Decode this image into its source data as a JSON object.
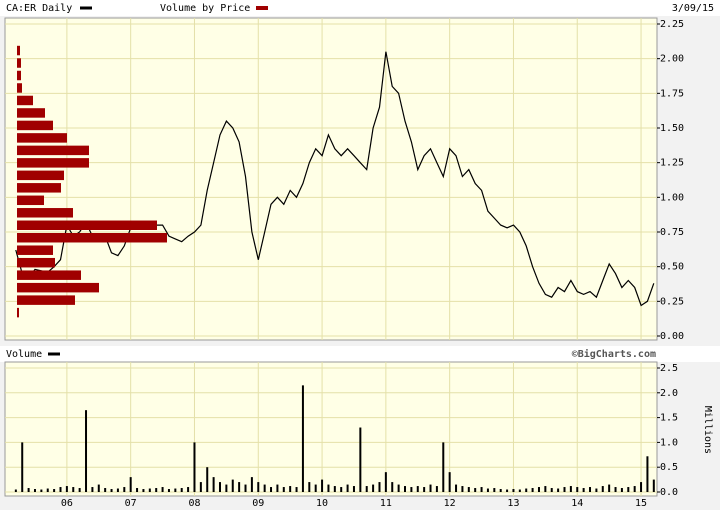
{
  "chart_data": [
    {
      "type": "line",
      "date": "3/09/15",
      "x": [
        2005.2,
        2005.3,
        2005.4,
        2005.5,
        2005.6,
        2005.7,
        2005.8,
        2005.9,
        2006.0,
        2006.1,
        2006.2,
        2006.3,
        2006.4,
        2006.5,
        2006.6,
        2006.7,
        2006.8,
        2006.9,
        2007.0,
        2007.1,
        2007.2,
        2007.3,
        2007.4,
        2007.5,
        2007.6,
        2007.7,
        2007.8,
        2007.9,
        2008.0,
        2008.1,
        2008.2,
        2008.3,
        2008.4,
        2008.5,
        2008.6,
        2008.7,
        2008.8,
        2008.9,
        2009.0,
        2009.1,
        2009.2,
        2009.3,
        2009.4,
        2009.5,
        2009.6,
        2009.7,
        2009.8,
        2009.9,
        2010.0,
        2010.1,
        2010.2,
        2010.3,
        2010.4,
        2010.5,
        2010.6,
        2010.7,
        2010.8,
        2010.9,
        2011.0,
        2011.1,
        2011.2,
        2011.3,
        2011.4,
        2011.5,
        2011.6,
        2011.7,
        2011.8,
        2011.9,
        2012.0,
        2012.1,
        2012.2,
        2012.3,
        2012.4,
        2012.5,
        2012.6,
        2012.7,
        2012.8,
        2012.9,
        2013.0,
        2013.1,
        2013.2,
        2013.3,
        2013.4,
        2013.5,
        2013.6,
        2013.7,
        2013.8,
        2013.9,
        2014.0,
        2014.1,
        2014.2,
        2014.3,
        2014.4,
        2014.5,
        2014.6,
        2014.7,
        2014.8,
        2014.9,
        2015.0,
        2015.1,
        2015.2
      ],
      "series": [
        {
          "name": "CA:ER Daily",
          "color": "#000000",
          "values": [
            0.62,
            0.45,
            0.42,
            0.48,
            0.47,
            0.46,
            0.5,
            0.55,
            0.8,
            0.72,
            0.75,
            0.82,
            0.72,
            0.7,
            0.72,
            0.6,
            0.58,
            0.65,
            0.78,
            0.82,
            0.8,
            0.78,
            0.8,
            0.8,
            0.72,
            0.7,
            0.68,
            0.72,
            0.75,
            0.8,
            1.05,
            1.25,
            1.45,
            1.55,
            1.5,
            1.4,
            1.15,
            0.75,
            0.55,
            0.75,
            0.95,
            1.0,
            0.95,
            1.05,
            1.0,
            1.1,
            1.25,
            1.35,
            1.3,
            1.45,
            1.35,
            1.3,
            1.35,
            1.3,
            1.25,
            1.2,
            1.5,
            1.65,
            2.05,
            1.8,
            1.75,
            1.55,
            1.4,
            1.2,
            1.3,
            1.35,
            1.25,
            1.15,
            1.35,
            1.3,
            1.15,
            1.2,
            1.1,
            1.05,
            0.9,
            0.85,
            0.8,
            0.78,
            0.8,
            0.75,
            0.65,
            0.5,
            0.38,
            0.3,
            0.28,
            0.35,
            0.32,
            0.4,
            0.32,
            0.3,
            0.32,
            0.28,
            0.4,
            0.52,
            0.45,
            0.35,
            0.4,
            0.35,
            0.22,
            0.25,
            0.38
          ]
        }
      ],
      "volume_by_price": {
        "name": "Volume by Price",
        "color": "#a00000",
        "bins": [
          0.12,
          0.21,
          0.3,
          0.39,
          0.48,
          0.57,
          0.66,
          0.75,
          0.84,
          0.93,
          1.02,
          1.11,
          1.2,
          1.29,
          1.38,
          1.47,
          1.56,
          1.65,
          1.74,
          1.83,
          1.92,
          2.01,
          2.1
        ],
        "values": [
          2,
          58,
          82,
          64,
          38,
          36,
          150,
          140,
          56,
          27,
          44,
          47,
          72,
          72,
          50,
          36,
          28,
          16,
          5,
          4,
          4,
          3
        ]
      },
      "xlim": [
        2005.03,
        2015.25
      ],
      "ylim": [
        0,
        2.25
      ],
      "xticks": [
        {
          "value": 2006,
          "label": "06"
        },
        {
          "value": 2007,
          "label": "07"
        },
        {
          "value": 2008,
          "label": "08"
        },
        {
          "value": 2009,
          "label": "09"
        },
        {
          "value": 2010,
          "label": "10"
        },
        {
          "value": 2011,
          "label": "11"
        },
        {
          "value": 2012,
          "label": "12"
        },
        {
          "value": 2013,
          "label": "13"
        },
        {
          "value": 2014,
          "label": "14"
        },
        {
          "value": 2015,
          "label": "15"
        }
      ],
      "yticks": [
        {
          "value": 0,
          "label": "0.00"
        },
        {
          "value": 0.25,
          "label": "0.25"
        },
        {
          "value": 0.5,
          "label": "0.50"
        },
        {
          "value": 0.75,
          "label": "0.75"
        },
        {
          "value": 1,
          "label": "1.00"
        },
        {
          "value": 1.25,
          "label": "1.25"
        },
        {
          "value": 1.5,
          "label": "1.50"
        },
        {
          "value": 1.75,
          "label": "1.75"
        },
        {
          "value": 2,
          "label": "2.00"
        },
        {
          "value": 2.25,
          "label": "2.25"
        }
      ],
      "grid": true
    },
    {
      "type": "bar",
      "credit": "©BigCharts.com",
      "y_label": "Millions",
      "x": [
        2005.2,
        2005.3,
        2005.4,
        2005.5,
        2005.6,
        2005.7,
        2005.8,
        2005.9,
        2006.0,
        2006.1,
        2006.2,
        2006.3,
        2006.4,
        2006.5,
        2006.6,
        2006.7,
        2006.8,
        2006.9,
        2007.0,
        2007.1,
        2007.2,
        2007.3,
        2007.4,
        2007.5,
        2007.6,
        2007.7,
        2007.8,
        2007.9,
        2008.0,
        2008.1,
        2008.2,
        2008.3,
        2008.4,
        2008.5,
        2008.6,
        2008.7,
        2008.8,
        2008.9,
        2009.0,
        2009.1,
        2009.2,
        2009.3,
        2009.4,
        2009.5,
        2009.6,
        2009.7,
        2009.8,
        2009.9,
        2010.0,
        2010.1,
        2010.2,
        2010.3,
        2010.4,
        2010.5,
        2010.6,
        2010.7,
        2010.8,
        2010.9,
        2011.0,
        2011.1,
        2011.2,
        2011.3,
        2011.4,
        2011.5,
        2011.6,
        2011.7,
        2011.8,
        2011.9,
        2012.0,
        2012.1,
        2012.2,
        2012.3,
        2012.4,
        2012.5,
        2012.6,
        2012.7,
        2012.8,
        2012.9,
        2013.0,
        2013.1,
        2013.2,
        2013.3,
        2013.4,
        2013.5,
        2013.6,
        2013.7,
        2013.8,
        2013.9,
        2014.0,
        2014.1,
        2014.2,
        2014.3,
        2014.4,
        2014.5,
        2014.6,
        2014.7,
        2014.8,
        2014.9,
        2015.0,
        2015.1,
        2015.2
      ],
      "series": [
        {
          "name": "Volume",
          "color": "#000000",
          "values": [
            0.05,
            1.0,
            0.08,
            0.06,
            0.05,
            0.07,
            0.06,
            0.1,
            0.12,
            0.1,
            0.08,
            1.65,
            0.1,
            0.15,
            0.08,
            0.06,
            0.07,
            0.1,
            0.3,
            0.08,
            0.06,
            0.07,
            0.08,
            0.1,
            0.06,
            0.07,
            0.08,
            0.1,
            1.0,
            0.2,
            0.5,
            0.3,
            0.2,
            0.15,
            0.25,
            0.2,
            0.15,
            0.3,
            0.2,
            0.15,
            0.1,
            0.15,
            0.1,
            0.12,
            0.1,
            2.15,
            0.2,
            0.15,
            0.25,
            0.15,
            0.12,
            0.1,
            0.15,
            0.12,
            1.3,
            0.12,
            0.15,
            0.2,
            0.4,
            0.2,
            0.15,
            0.12,
            0.1,
            0.12,
            0.1,
            0.15,
            0.12,
            1.0,
            0.4,
            0.15,
            0.12,
            0.1,
            0.08,
            0.1,
            0.07,
            0.08,
            0.06,
            0.05,
            0.06,
            0.05,
            0.07,
            0.08,
            0.1,
            0.12,
            0.08,
            0.07,
            0.1,
            0.12,
            0.1,
            0.08,
            0.1,
            0.07,
            0.12,
            0.15,
            0.1,
            0.08,
            0.1,
            0.12,
            0.2,
            0.72,
            0.25
          ]
        }
      ],
      "xlim": [
        2005.03,
        2015.25
      ],
      "ylim": [
        0,
        2.5
      ],
      "xticks": [
        {
          "value": 2006,
          "label": "06"
        },
        {
          "value": 2007,
          "label": "07"
        },
        {
          "value": 2008,
          "label": "08"
        },
        {
          "value": 2009,
          "label": "09"
        },
        {
          "value": 2010,
          "label": "10"
        },
        {
          "value": 2011,
          "label": "11"
        },
        {
          "value": 2012,
          "label": "12"
        },
        {
          "value": 2013,
          "label": "13"
        },
        {
          "value": 2014,
          "label": "14"
        },
        {
          "value": 2015,
          "label": "15"
        }
      ],
      "yticks": [
        {
          "value": 0,
          "label": "0.0"
        },
        {
          "value": 0.5,
          "label": "0.5"
        },
        {
          "value": 1,
          "label": "1.0"
        },
        {
          "value": 1.5,
          "label": "1.5"
        },
        {
          "value": 2,
          "label": "2.0"
        },
        {
          "value": 2.5,
          "label": "2.5"
        }
      ],
      "grid": true
    }
  ]
}
